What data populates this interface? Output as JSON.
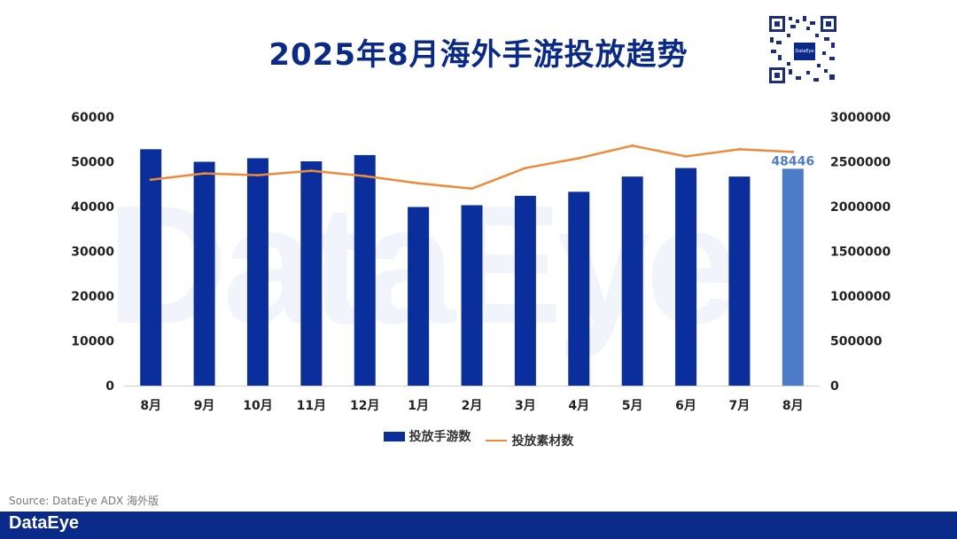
{
  "title": "2025年8月海外手游投放趋势",
  "brand": "DataEye",
  "qr_badge": "DataEye",
  "source": "Source: DataEye ADX 海外版",
  "colors": {
    "bar": "#0a2e9b",
    "bar_highlight": "#4d7cc9",
    "line": "#ee8a3a",
    "title": "#0a2a8a",
    "footer": "#0a2a8a"
  },
  "chart_data": {
    "type": "bar",
    "categories": [
      "8月",
      "9月",
      "10月",
      "11月",
      "12月",
      "1月",
      "2月",
      "3月",
      "4月",
      "5月",
      "6月",
      "7月",
      "8月"
    ],
    "series": [
      {
        "name": "投放手游数",
        "type": "bar",
        "axis": "left",
        "values": [
          52800,
          50000,
          50800,
          50100,
          51500,
          39900,
          40300,
          42400,
          43300,
          46700,
          48600,
          46700,
          48446
        ]
      },
      {
        "name": "投放素材数",
        "type": "line",
        "axis": "right",
        "values": [
          2300000,
          2370000,
          2350000,
          2400000,
          2340000,
          2260000,
          2200000,
          2430000,
          2540000,
          2680000,
          2560000,
          2640000,
          2610000
        ]
      }
    ],
    "highlight_label": "48446",
    "y_left": {
      "min": 0,
      "max": 60000,
      "ticks": [
        "0",
        "10000",
        "20000",
        "30000",
        "40000",
        "50000",
        "60000"
      ]
    },
    "y_right": {
      "min": 0,
      "max": 3000000,
      "ticks": [
        "0",
        "500000",
        "1000000",
        "1500000",
        "2000000",
        "2500000",
        "3000000"
      ]
    },
    "legend_position": "bottom",
    "grid": false
  }
}
